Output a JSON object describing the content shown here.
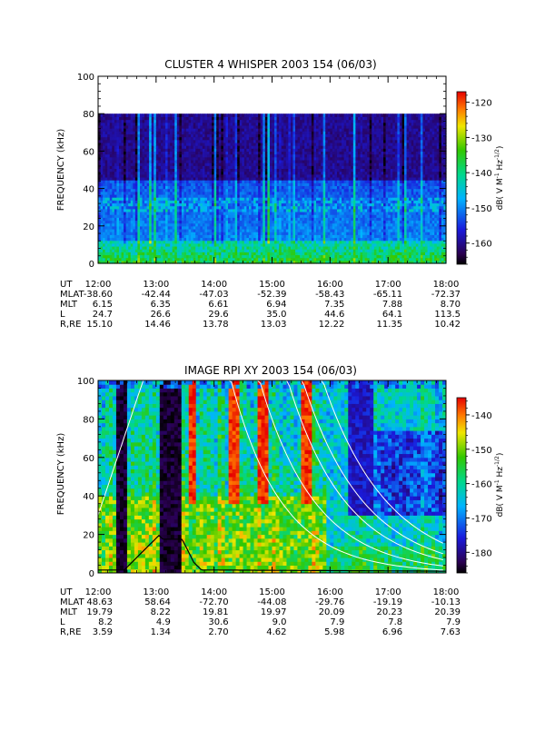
{
  "chart_data": [
    {
      "type": "heatmap",
      "title": "CLUSTER 4 WHISPER 2003 154 (06/03)",
      "ylabel": "FREQUENCY (kHz)",
      "ylim": [
        0,
        100
      ],
      "yticks": [
        "0",
        "20",
        "40",
        "60",
        "80",
        "100"
      ],
      "xlim": [
        "12:00",
        "18:00"
      ],
      "data_ceiling_khz": 80,
      "colorbar": {
        "label": "dB( V M",
        "label_sup1": "-1",
        "label_mid": " Hz",
        "label_sup2": "-1/2",
        "label_end": ")",
        "range": [
          -166,
          -117
        ],
        "ticks": [
          "-120",
          "-130",
          "-140",
          "-150",
          "-160"
        ],
        "tick_values": [
          -120,
          -130,
          -140,
          -150,
          -160
        ],
        "colormap": "rainbow"
      },
      "ephemeris": {
        "labels": [
          "UT",
          "MLAT",
          "MLT",
          "L",
          "R,RE"
        ],
        "rows": [
          [
            "12:00",
            "13:00",
            "14:00",
            "15:00",
            "16:00",
            "17:00",
            "18:00"
          ],
          [
            "-38.60",
            "-42.44",
            "-47.03",
            "-52.39",
            "-58.43",
            "-65.11",
            "-72.37"
          ],
          [
            "6.15",
            "6.35",
            "6.61",
            "6.94",
            "7.35",
            "7.88",
            "8.70"
          ],
          [
            "24.7",
            "26.6",
            "29.6",
            "35.0",
            "44.6",
            "64.1",
            "113.5"
          ],
          [
            "15.10",
            "14.46",
            "13.78",
            "13.03",
            "12.22",
            "11.35",
            "10.42"
          ]
        ]
      },
      "bg_level_upper": -160,
      "bg_level_lower": -150,
      "low_band_level": -138
    },
    {
      "type": "heatmap",
      "title": "IMAGE RPI XY 2003 154 (06/03)",
      "ylabel": "FREQUENCY (kHz)",
      "ylim": [
        0,
        100
      ],
      "yticks": [
        "0",
        "20",
        "40",
        "60",
        "80",
        "100"
      ],
      "xlim": [
        "12:00",
        "18:00"
      ],
      "colorbar": {
        "label": "dB( V M",
        "label_sup1": "-1",
        "label_mid": " Hz",
        "label_sup2": "-1/2",
        "label_end": ")",
        "range": [
          -186,
          -135
        ],
        "ticks": [
          "-140",
          "-150",
          "-160",
          "-170",
          "-180"
        ],
        "tick_values": [
          -140,
          -150,
          -160,
          -170,
          -180
        ],
        "colormap": "rainbow"
      },
      "ephemeris": {
        "labels": [
          "UT",
          "MLAT",
          "MLT",
          "L",
          "R,RE"
        ],
        "rows": [
          [
            "12:00",
            "13:00",
            "14:00",
            "15:00",
            "16:00",
            "17:00",
            "18:00"
          ],
          [
            "48.63",
            "58.64",
            "-72.70",
            "-44.08",
            "-29.76",
            "-19.19",
            "-10.13"
          ],
          [
            "19.79",
            "8.22",
            "19.81",
            "19.97",
            "20.09",
            "20.23",
            "20.39"
          ],
          [
            "8.2",
            "4.9",
            "30.6",
            "9.0",
            "7.9",
            "7.8",
            "7.9"
          ],
          [
            "3.59",
            "1.34",
            "2.70",
            "4.62",
            "5.98",
            "6.96",
            "7.63"
          ]
        ]
      },
      "dark_columns_hours": [
        12.4,
        13.15,
        13.3
      ],
      "hot_columns_hours": [
        13.6,
        14.3,
        14.8,
        15.55
      ]
    }
  ]
}
